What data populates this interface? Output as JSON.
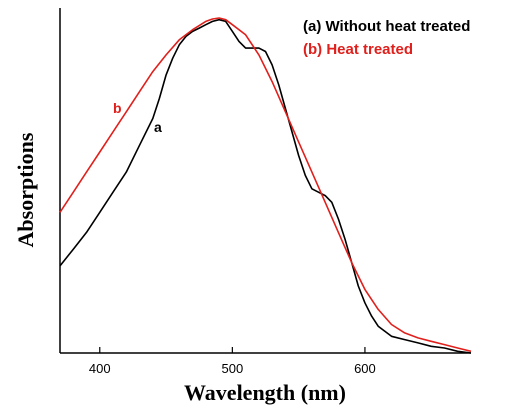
{
  "chart_data": {
    "type": "line",
    "xlabel": "Wavelength (nm)",
    "ylabel": "Absorptions",
    "xlim": [
      370,
      680
    ],
    "ylim": [
      0,
      1
    ],
    "xticks": [
      400,
      500,
      600
    ],
    "x_tick_labels": [
      "400",
      "500",
      "600"
    ],
    "y_ticks_shown": false,
    "grid": false,
    "legend_position": "top-right",
    "colors": {
      "a": "#000000",
      "b": "#e0201c"
    },
    "series": [
      {
        "name": "(a) Without heat treated",
        "label": "a",
        "x": [
          370,
          380,
          390,
          400,
          410,
          420,
          430,
          440,
          445,
          450,
          455,
          460,
          465,
          470,
          475,
          480,
          485,
          490,
          495,
          500,
          505,
          510,
          515,
          520,
          525,
          530,
          535,
          540,
          545,
          550,
          555,
          560,
          565,
          570,
          575,
          580,
          585,
          590,
          595,
          600,
          605,
          610,
          620,
          630,
          640,
          650,
          660,
          670,
          680
        ],
        "y": [
          0.26,
          0.31,
          0.36,
          0.42,
          0.48,
          0.54,
          0.62,
          0.7,
          0.76,
          0.83,
          0.88,
          0.92,
          0.945,
          0.96,
          0.97,
          0.98,
          0.99,
          0.995,
          0.99,
          0.96,
          0.93,
          0.91,
          0.91,
          0.91,
          0.9,
          0.86,
          0.8,
          0.73,
          0.66,
          0.59,
          0.53,
          0.49,
          0.48,
          0.47,
          0.45,
          0.4,
          0.34,
          0.27,
          0.2,
          0.15,
          0.11,
          0.08,
          0.05,
          0.04,
          0.03,
          0.02,
          0.015,
          0.005,
          0.0
        ]
      },
      {
        "name": "(b) Heat treated",
        "label": "b",
        "x": [
          370,
          380,
          390,
          400,
          410,
          420,
          430,
          440,
          450,
          460,
          470,
          480,
          485,
          490,
          495,
          500,
          510,
          520,
          530,
          540,
          550,
          560,
          570,
          580,
          590,
          600,
          610,
          620,
          630,
          640,
          650,
          660,
          670,
          680
        ],
        "y": [
          0.42,
          0.48,
          0.54,
          0.6,
          0.66,
          0.72,
          0.78,
          0.84,
          0.89,
          0.935,
          0.965,
          0.99,
          0.997,
          1.0,
          0.995,
          0.98,
          0.95,
          0.89,
          0.81,
          0.72,
          0.63,
          0.54,
          0.45,
          0.36,
          0.27,
          0.19,
          0.13,
          0.085,
          0.06,
          0.045,
          0.035,
          0.025,
          0.015,
          0.005
        ]
      }
    ],
    "legend": [
      "(a) Without heat treated",
      "(b) Heat treated"
    ]
  }
}
